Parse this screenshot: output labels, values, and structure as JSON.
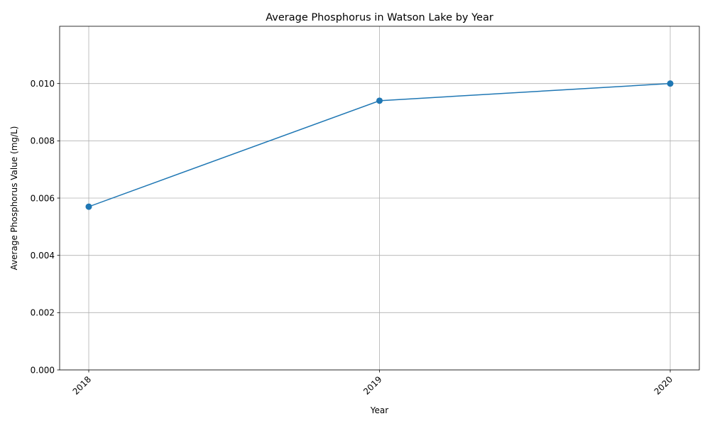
{
  "chart_data": {
    "type": "line",
    "title": "Average Phosphorus in Watson Lake by Year",
    "xlabel": "Year",
    "ylabel": "Average Phosphorus Value (mg/L)",
    "categories": [
      "2018",
      "2019",
      "2020"
    ],
    "series": [
      {
        "values": [
          0.0057,
          0.0094,
          0.01
        ],
        "color": "#1f77b4",
        "marker": "circle"
      }
    ],
    "ylim": [
      0,
      0.012
    ],
    "yticks": [
      "0.000",
      "0.002",
      "0.004",
      "0.006",
      "0.008",
      "0.010"
    ],
    "grid": true,
    "legend": "none"
  }
}
